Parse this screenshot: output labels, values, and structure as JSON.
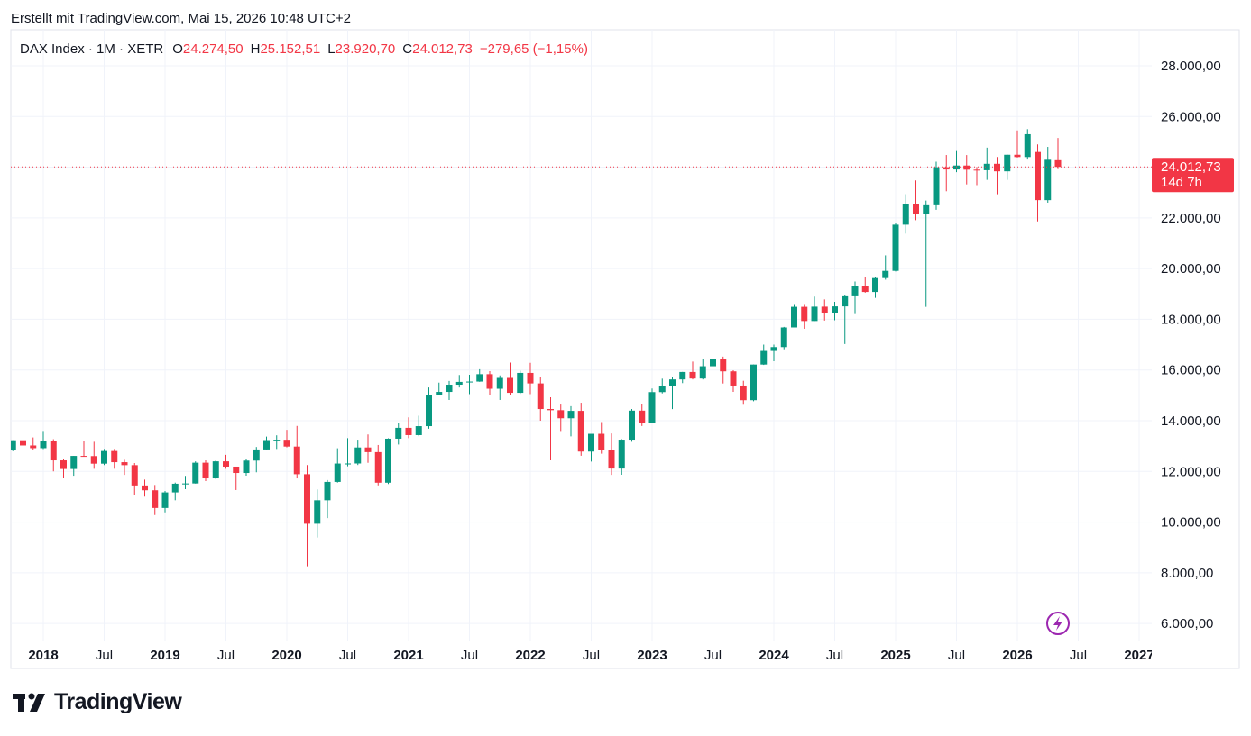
{
  "created_note": "Erstellt mit TradingView.com, Mai 15, 2026 10:48 UTC+2",
  "brand": "TradingView",
  "chart_data": {
    "type": "candlestick",
    "symbol": "DAX Index · 1M · XETR",
    "ohlc_legend": [
      {
        "key": "O",
        "value": "24.274,50"
      },
      {
        "key": "H",
        "value": "25.152,51"
      },
      {
        "key": "L",
        "value": "23.920,70"
      },
      {
        "key": "C",
        "value": "24.012,73"
      }
    ],
    "change": "−279,65 (−1,15%)",
    "price_label": "24.012,73",
    "countdown": "14d 7h",
    "up_color": "#089981",
    "down_color": "#f23645",
    "grid": true,
    "ylim": [
      4230,
      29420
    ],
    "yticks": [
      {
        "value": 6000,
        "label": "6.000,00"
      },
      {
        "value": 8000,
        "label": "8.000,00"
      },
      {
        "value": 10000,
        "label": "10.000,00"
      },
      {
        "value": 12000,
        "label": "12.000,00"
      },
      {
        "value": 14000,
        "label": "14.000,00"
      },
      {
        "value": 16000,
        "label": "16.000,00"
      },
      {
        "value": 18000,
        "label": "18.000,00"
      },
      {
        "value": 20000,
        "label": "20.000,00"
      },
      {
        "value": 22000,
        "label": "22.000,00"
      },
      {
        "value": 24000,
        "label": "24.000,00"
      },
      {
        "value": 26000,
        "label": "26.000,00"
      },
      {
        "value": 28000,
        "label": "28.000,00"
      }
    ],
    "categories": [
      null,
      null,
      null,
      "2018",
      null,
      null,
      null,
      null,
      null,
      "Jul",
      null,
      null,
      null,
      null,
      null,
      "2019",
      null,
      null,
      null,
      null,
      null,
      "Jul",
      null,
      null,
      null,
      null,
      null,
      "2020",
      null,
      null,
      null,
      null,
      null,
      "Jul",
      null,
      null,
      null,
      null,
      null,
      "2021",
      null,
      null,
      null,
      null,
      null,
      "Jul",
      null,
      null,
      null,
      null,
      null,
      "2022",
      null,
      null,
      null,
      null,
      null,
      "Jul",
      null,
      null,
      null,
      null,
      null,
      "2023",
      null,
      null,
      null,
      null,
      null,
      "Jul",
      null,
      null,
      null,
      null,
      null,
      "2024",
      null,
      null,
      null,
      null,
      null,
      "Jul",
      null,
      null,
      null,
      null,
      null,
      "2025",
      null,
      null,
      null,
      null,
      null,
      "Jul",
      null,
      null,
      null,
      null,
      null,
      "2026",
      null,
      null,
      null,
      null,
      null,
      "Jul",
      null,
      null,
      null,
      null,
      null,
      "2027"
    ],
    "values": [
      [
        12830,
        13230,
        12800,
        13230
      ],
      [
        13230,
        13525,
        12860,
        13024
      ],
      [
        13024,
        13340,
        12840,
        12918
      ],
      [
        12918,
        13597,
        12880,
        13189
      ],
      [
        13189,
        13270,
        12003,
        12436
      ],
      [
        12436,
        12480,
        11727,
        12097
      ],
      [
        12097,
        12613,
        11830,
        12612
      ],
      [
        12612,
        13205,
        12578,
        12605
      ],
      [
        12605,
        13170,
        12104,
        12306
      ],
      [
        12306,
        12887,
        12251,
        12806
      ],
      [
        12806,
        12887,
        12106,
        12364
      ],
      [
        12364,
        12461,
        11865,
        12247
      ],
      [
        12247,
        12330,
        11051,
        11447
      ],
      [
        11447,
        11679,
        11009,
        11257
      ],
      [
        11257,
        11466,
        10279,
        10559
      ],
      [
        10559,
        11230,
        10386,
        11173
      ],
      [
        11173,
        11559,
        10863,
        11516
      ],
      [
        11516,
        11823,
        11299,
        11526
      ],
      [
        11526,
        12397,
        11520,
        12344
      ],
      [
        12344,
        12436,
        11620,
        11726
      ],
      [
        11726,
        12438,
        11696,
        12398
      ],
      [
        12398,
        12656,
        12104,
        12189
      ],
      [
        12189,
        12189,
        11266,
        11939
      ],
      [
        11939,
        12494,
        11832,
        12428
      ],
      [
        12428,
        12964,
        11966,
        12866
      ],
      [
        12866,
        13374,
        12839,
        13236
      ],
      [
        13236,
        13425,
        12886,
        13249
      ],
      [
        13249,
        13640,
        12948,
        12981
      ],
      [
        12981,
        13795,
        11725,
        11890
      ],
      [
        11890,
        12250,
        8256,
        9936
      ],
      [
        9936,
        11290,
        9394,
        10862
      ],
      [
        10862,
        11661,
        10160,
        11587
      ],
      [
        11587,
        12913,
        11560,
        12311
      ],
      [
        12311,
        13314,
        12204,
        12313
      ],
      [
        12313,
        13252,
        12253,
        12945
      ],
      [
        12945,
        13460,
        12339,
        12761
      ],
      [
        12761,
        13043,
        11450,
        11556
      ],
      [
        11556,
        13308,
        11505,
        13291
      ],
      [
        13291,
        13903,
        13062,
        13719
      ],
      [
        13719,
        14132,
        13311,
        13433
      ],
      [
        13433,
        14197,
        13390,
        13786
      ],
      [
        13786,
        15311,
        13685,
        15008
      ],
      [
        15008,
        15502,
        15007,
        15136
      ],
      [
        15136,
        15569,
        14817,
        15421
      ],
      [
        15421,
        15803,
        15310,
        15531
      ],
      [
        15531,
        15811,
        15048,
        15544
      ],
      [
        15544,
        16030,
        15534,
        15835
      ],
      [
        15835,
        15953,
        15030,
        15261
      ],
      [
        15261,
        15786,
        14819,
        15688
      ],
      [
        15688,
        16290,
        15005,
        15100
      ],
      [
        15100,
        15972,
        15060,
        15885
      ],
      [
        15885,
        16285,
        15049,
        15471
      ],
      [
        15471,
        15736,
        14000,
        14461
      ],
      [
        14461,
        14925,
        12439,
        14415
      ],
      [
        14415,
        14638,
        13595,
        14098
      ],
      [
        14098,
        14575,
        13381,
        14388
      ],
      [
        14388,
        14709,
        12618,
        12784
      ],
      [
        12784,
        13363,
        12390,
        13484
      ],
      [
        13484,
        13948,
        12700,
        12835
      ],
      [
        12835,
        13500,
        11863,
        12114
      ],
      [
        12114,
        13275,
        11869,
        13253
      ],
      [
        13253,
        14463,
        13168,
        14397
      ],
      [
        14397,
        14676,
        13792,
        13924
      ],
      [
        13924,
        15270,
        13900,
        15128
      ],
      [
        15128,
        15659,
        15076,
        15365
      ],
      [
        15365,
        15706,
        14458,
        15629
      ],
      [
        15629,
        15925,
        15483,
        15922
      ],
      [
        15922,
        16331,
        15629,
        15664
      ],
      [
        15664,
        16427,
        15629,
        16148
      ],
      [
        16148,
        16529,
        15456,
        16447
      ],
      [
        16447,
        16528,
        15468,
        15947
      ],
      [
        15947,
        15989,
        15138,
        15387
      ],
      [
        15387,
        15575,
        14630,
        14810
      ],
      [
        14810,
        16215,
        14770,
        16215
      ],
      [
        16215,
        17003,
        16200,
        16752
      ],
      [
        16752,
        17003,
        16345,
        16904
      ],
      [
        16904,
        17700,
        16818,
        17678
      ],
      [
        17678,
        18567,
        17676,
        18492
      ],
      [
        18492,
        18567,
        17626,
        17932
      ],
      [
        17932,
        18893,
        17929,
        18498
      ],
      [
        18498,
        18784,
        17950,
        18235
      ],
      [
        18235,
        18692,
        17960,
        18509
      ],
      [
        18509,
        18940,
        17025,
        18907
      ],
      [
        18907,
        19491,
        18208,
        19325
      ],
      [
        19325,
        19675,
        19048,
        19078
      ],
      [
        19078,
        19674,
        18846,
        19626
      ],
      [
        19626,
        20522,
        19563,
        19909
      ],
      [
        19909,
        21800,
        19885,
        21732
      ],
      [
        21732,
        22935,
        21380,
        22551
      ],
      [
        22551,
        23476,
        21910,
        22163
      ],
      [
        22163,
        22683,
        18490,
        22497
      ],
      [
        22497,
        24215,
        22320,
        23997
      ],
      [
        23997,
        24480,
        23050,
        23910
      ],
      [
        23910,
        24639,
        23800,
        24065
      ],
      [
        24065,
        24478,
        23320,
        23902
      ],
      [
        23902,
        24007,
        23290,
        23880
      ],
      [
        23880,
        24771,
        23500,
        24133
      ],
      [
        24133,
        24400,
        22930,
        23836
      ],
      [
        23836,
        24500,
        23500,
        24490
      ],
      [
        24490,
        25450,
        24380,
        24400
      ],
      [
        24400,
        25500,
        24300,
        25300
      ],
      [
        24600,
        24900,
        21860,
        22700
      ],
      [
        22700,
        24800,
        22600,
        24292
      ],
      [
        24274.5,
        25152.51,
        23920.7,
        24012.73
      ],
      null,
      null,
      null,
      null,
      null,
      null,
      null,
      null
    ]
  }
}
